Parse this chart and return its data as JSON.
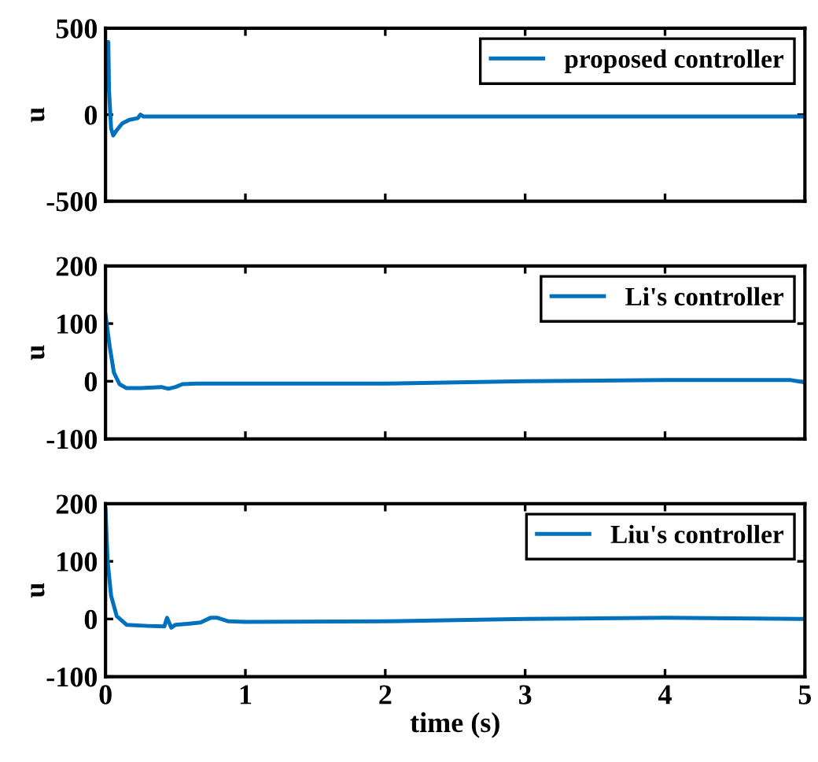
{
  "chart_data": [
    {
      "type": "line",
      "ylabel": "u",
      "xlim": [
        0,
        5
      ],
      "ylim": [
        -500,
        500
      ],
      "xticks": [
        0,
        1,
        2,
        3,
        4,
        5
      ],
      "yticks": [
        -500,
        0,
        500
      ],
      "tick_labels": "y",
      "grid": false,
      "legend": "top right",
      "series": [
        {
          "name": "proposed controller",
          "color": "#0072bd",
          "x": [
            0,
            0.01,
            0.02,
            0.025,
            0.04,
            0.055,
            0.08,
            0.12,
            0.17,
            0.23,
            0.25,
            0.27,
            0.35,
            0.5,
            1,
            2,
            3,
            4,
            5
          ],
          "values": [
            150,
            400,
            420,
            140,
            -80,
            -120,
            -90,
            -50,
            -30,
            -20,
            0,
            -10,
            -10,
            -10,
            -10,
            -10,
            -10,
            -10,
            -10
          ]
        }
      ]
    },
    {
      "type": "line",
      "ylabel": "u",
      "xlim": [
        0,
        5
      ],
      "ylim": [
        -100,
        200
      ],
      "xticks": [
        0,
        1,
        2,
        3,
        4,
        5
      ],
      "yticks": [
        -100,
        0,
        100,
        200
      ],
      "tick_labels": "y",
      "grid": false,
      "legend": "top right",
      "series": [
        {
          "name": "Li's controller",
          "color": "#0072bd",
          "x": [
            0,
            0.03,
            0.06,
            0.1,
            0.15,
            0.25,
            0.4,
            0.45,
            0.5,
            0.55,
            0.65,
            1,
            2,
            3,
            4,
            4.9,
            5
          ],
          "values": [
            115,
            60,
            15,
            -5,
            -12,
            -12,
            -10,
            -13,
            -10,
            -5,
            -4,
            -4,
            -4,
            0,
            2,
            2,
            -2
          ]
        }
      ]
    },
    {
      "type": "line",
      "ylabel": "u",
      "xlabel": "time (s)",
      "xlim": [
        0,
        5
      ],
      "ylim": [
        -100,
        200
      ],
      "xticks": [
        0,
        1,
        2,
        3,
        4,
        5
      ],
      "yticks": [
        -100,
        0,
        100,
        200
      ],
      "grid": false,
      "legend": "top right",
      "series": [
        {
          "name": "Liu's controller",
          "color": "#0072bd",
          "x": [
            0,
            0.015,
            0.04,
            0.08,
            0.15,
            0.3,
            0.42,
            0.44,
            0.47,
            0.5,
            0.6,
            0.68,
            0.75,
            0.8,
            0.88,
            1,
            2,
            3,
            4,
            5
          ],
          "values": [
            190,
            100,
            40,
            5,
            -10,
            -12,
            -13,
            2,
            -15,
            -10,
            -8,
            -6,
            2,
            2,
            -4,
            -5,
            -4,
            0,
            2,
            0
          ]
        }
      ]
    }
  ]
}
